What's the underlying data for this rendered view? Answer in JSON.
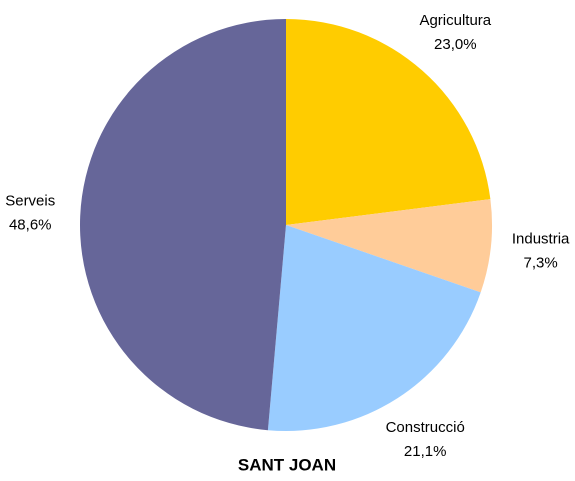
{
  "chart_data": {
    "type": "pie",
    "title": "SANT JOAN",
    "categories": [
      "Agricultura",
      "Industria",
      "Construcció",
      "Serveis"
    ],
    "values": [
      23.0,
      7.3,
      21.1,
      48.6
    ],
    "value_labels": [
      "23,0%",
      "7,3%",
      "21,1%",
      "48,6%"
    ],
    "colors": [
      "#ffcc00",
      "#ffcc99",
      "#99ccff",
      "#666699"
    ]
  }
}
